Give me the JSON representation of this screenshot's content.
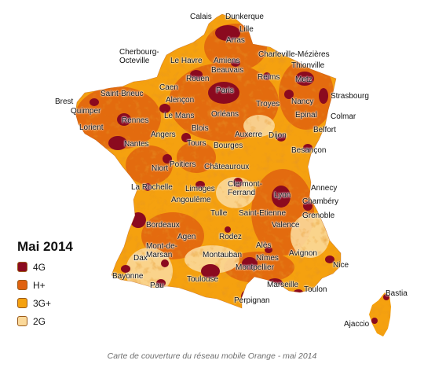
{
  "legend": {
    "title": "Mai 2014",
    "items": [
      {
        "label": "4G",
        "color": "#8b0a1f"
      },
      {
        "label": "H+",
        "color": "#e0620f"
      },
      {
        "label": "3G+",
        "color": "#f5a10f"
      },
      {
        "label": "2G",
        "color": "#fbd99a"
      }
    ]
  },
  "caption": "Carte de couverture du réseau mobile Orange - mai 2014",
  "cities": [
    "Calais",
    "Dunkerque",
    "Lille",
    "Arras",
    "Cherbourg-\nOcteville",
    "Le Havre",
    "Amiens",
    "Beauvais",
    "Charleville-Mézières",
    "Thionville",
    "Metz",
    "Reims",
    "Rouen",
    "Caen",
    "Paris",
    "Brest",
    "Saint-Brieuc",
    "Quimper",
    "Alençon",
    "Nancy",
    "Strasbourg",
    "Troyes",
    "Lorient",
    "Rennes",
    "Le Mans",
    "Orléans",
    "Epinal",
    "Colmar",
    "Belfort",
    "Blois",
    "Auxerre",
    "Dijon",
    "Angers",
    "Tours",
    "Bourges",
    "Nantes",
    "Besançon",
    "Niort",
    "Poitiers",
    "Châteauroux",
    "La Rochelle",
    "Limoges",
    "Clermont-\nFerrand",
    "Lyon",
    "Annecy",
    "Angoulême",
    "Chambéry",
    "Tulle",
    "Saint-Etienne",
    "Grenoble",
    "Valence",
    "Bordeaux",
    "Agen",
    "Rodez",
    "Mont-de-\nMarsan",
    "Alès",
    "Avignon",
    "Dax",
    "Montauban",
    "Nîmes",
    "Montpellier",
    "Nice",
    "Bayonne",
    "Toulouse",
    "Marseille",
    "Toulon",
    "Pau",
    "Perpignan",
    "Bastia",
    "Ajaccio"
  ]
}
